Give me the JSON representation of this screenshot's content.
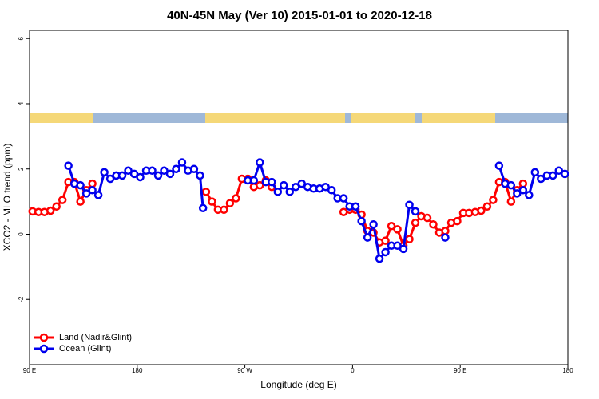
{
  "chart_data": {
    "type": "line",
    "title": "40N-45N May (Ver 10)   2015-01-01 to 2020-12-18",
    "x_label": "Longitude (deg E)",
    "y_label": "XCO2 - MLO trend (ppm)",
    "xlim": [
      90,
      540
    ],
    "ylim": [
      -4,
      6.25
    ],
    "xticks": [
      {
        "value": 90,
        "label": "90 E"
      },
      180,
      {
        "value": 270,
        "label": "90 W"
      },
      {
        "value": 360,
        "label": "0"
      },
      {
        "value": 450,
        "label": "90 E"
      },
      {
        "value": 540,
        "label": "180"
      }
    ],
    "yticks": [
      -2,
      0,
      2,
      4,
      6
    ],
    "legend": "bottom-left",
    "series": [
      {
        "name": "Land (Nadir&Glint)",
        "color": "#ff0000",
        "x": [
          92.5,
          97.5,
          102.5,
          107.5,
          112.5,
          117.5,
          122.5,
          127.5,
          132.5,
          137.5,
          142.5,
          190,
          237.5,
          242.5,
          247.5,
          252.5,
          257.5,
          262.5,
          267.5,
          272.5,
          277.5,
          282.5,
          287.5,
          292.5,
          320,
          352.5,
          357.5,
          362.5,
          367.5,
          372.5,
          377.5,
          382.5,
          387.5,
          392.5,
          397.5,
          402.5,
          407.5,
          412.5,
          417.5,
          422.5,
          427.5,
          432.5,
          437.5,
          442.5,
          447.5,
          452.5,
          457.5,
          462.5,
          467.5,
          472.5,
          477.5,
          482.5,
          487.5,
          492.5,
          497.5,
          502.5
        ],
        "values": [
          0.7,
          0.68,
          0.68,
          0.72,
          0.85,
          1.05,
          1.6,
          1.6,
          1.0,
          1.35,
          1.55,
          null,
          1.3,
          1.0,
          0.75,
          0.75,
          0.95,
          1.1,
          1.7,
          1.7,
          1.45,
          1.5,
          1.65,
          1.45,
          null,
          0.68,
          0.75,
          0.75,
          0.6,
          0.1,
          0.05,
          -0.25,
          -0.2,
          0.25,
          0.15,
          -0.35,
          -0.15,
          0.35,
          0.55,
          0.5,
          0.3,
          0.05,
          0.1,
          0.35,
          0.4,
          0.65,
          0.65,
          0.68,
          0.72,
          0.85,
          1.05,
          1.6,
          1.6,
          1.0,
          1.35,
          1.55
        ]
      },
      {
        "name": "Ocean (Glint)",
        "color": "#0000ee",
        "x": [
          122.5,
          127.5,
          132.5,
          137.5,
          142.5,
          147.5,
          152.5,
          157.5,
          162.5,
          167.5,
          172.5,
          177.5,
          182.5,
          187.5,
          192.5,
          197.5,
          202.5,
          207.5,
          212.5,
          217.5,
          222.5,
          227.5,
          232.5,
          235,
          255,
          272.5,
          277.5,
          282.5,
          287.5,
          292.5,
          297.5,
          302.5,
          307.5,
          312.5,
          317.5,
          322.5,
          327.5,
          332.5,
          337.5,
          342.5,
          347.5,
          352.5,
          357.5,
          362.5,
          367.5,
          372.5,
          377.5,
          382.5,
          387.5,
          392.5,
          397.5,
          402.5,
          407.5,
          412.5,
          425,
          437.5,
          460,
          482.5,
          487.5,
          492.5,
          497.5,
          502.5,
          507.5,
          512.5,
          517.5,
          522.5,
          527.5,
          532.5,
          537.5
        ],
        "values": [
          2.1,
          1.55,
          1.5,
          1.25,
          1.35,
          1.2,
          1.9,
          1.7,
          1.8,
          1.8,
          1.95,
          1.85,
          1.75,
          1.95,
          1.95,
          1.8,
          1.95,
          1.85,
          2.0,
          2.2,
          1.95,
          2.0,
          1.8,
          0.8,
          null,
          1.65,
          1.65,
          2.2,
          1.6,
          1.6,
          1.3,
          1.5,
          1.3,
          1.45,
          1.55,
          1.45,
          1.4,
          1.4,
          1.45,
          1.35,
          1.1,
          1.1,
          0.85,
          0.85,
          0.4,
          -0.1,
          0.3,
          -0.75,
          -0.55,
          -0.35,
          -0.35,
          -0.45,
          0.9,
          0.7,
          null,
          -0.1,
          null,
          2.1,
          1.55,
          1.5,
          1.25,
          1.35,
          1.2,
          1.9,
          1.7,
          1.8,
          1.8,
          1.95,
          1.85
        ]
      }
    ]
  }
}
